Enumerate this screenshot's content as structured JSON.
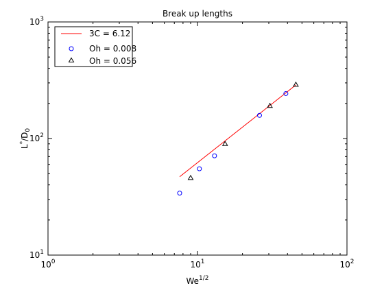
{
  "chart_data": {
    "type": "scatter",
    "title": "Break up lengths",
    "xlabel": {
      "base": "We",
      "sup": "1/2"
    },
    "ylabel": {
      "base": "L",
      "sup": "*",
      "mid": "/D",
      "sub": "0"
    },
    "xscale": "log",
    "yscale": "log",
    "xlim": [
      1,
      100
    ],
    "ylim": [
      10,
      1000
    ],
    "grid": false,
    "legend_position": "top-left",
    "x_ticks": [
      {
        "value": 1,
        "base": "10",
        "exp": "0"
      },
      {
        "value": 10,
        "base": "10",
        "exp": "1"
      },
      {
        "value": 100,
        "base": "10",
        "exp": "2"
      }
    ],
    "y_ticks": [
      {
        "value": 10,
        "base": "10",
        "exp": "1"
      },
      {
        "value": 100,
        "base": "10",
        "exp": "2"
      },
      {
        "value": 1000,
        "base": "10",
        "exp": "3"
      }
    ],
    "series": [
      {
        "name": "3C = 6.12",
        "kind": "line",
        "color": "#ff0000",
        "x": [
          7.6,
          45.5
        ],
        "y": [
          47,
          288
        ]
      },
      {
        "name": "Oh = 0.008",
        "kind": "marker",
        "marker": "circle",
        "color": "#0000ff",
        "x": [
          7.6,
          10.3,
          13.0,
          26.0,
          39.0
        ],
        "y": [
          34,
          55,
          71,
          158,
          243
        ]
      },
      {
        "name": "Oh = 0.056",
        "kind": "marker",
        "marker": "triangle",
        "color": "#000000",
        "x": [
          9.0,
          15.3,
          30.5,
          45.5
        ],
        "y": [
          46,
          90,
          191,
          290
        ]
      }
    ]
  }
}
